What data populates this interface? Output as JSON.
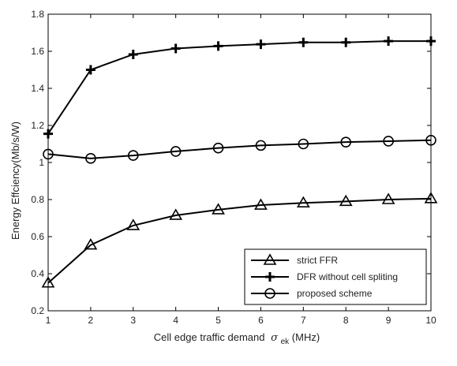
{
  "chart_data": {
    "type": "line",
    "xlabel": "Cell edge traffic demand",
    "xlabel_symbol": "σ",
    "xlabel_subscript": "ek",
    "xlabel_unit": "(MHz)",
    "ylabel": "Energy Effciency(Mb/s/W)",
    "xlim": [
      1,
      10
    ],
    "ylim": [
      0.2,
      1.8
    ],
    "x_ticks": [
      1,
      2,
      3,
      4,
      5,
      6,
      7,
      8,
      9,
      10
    ],
    "y_ticks": [
      0.2,
      0.4,
      0.6,
      0.8,
      1,
      1.2,
      1.4,
      1.6,
      1.8
    ],
    "y_tick_labels": [
      "0.2",
      "0.4",
      "0.6",
      "0.8",
      "1",
      "1.2",
      "1.4",
      "1.6",
      "1.8"
    ],
    "grid": false,
    "legend_position": "bottom-right",
    "x": [
      1,
      2,
      3,
      4,
      5,
      6,
      7,
      8,
      9,
      10
    ],
    "series": [
      {
        "name": "strict FFR",
        "marker": "triangle",
        "color": "#000000",
        "values": [
          0.35,
          0.555,
          0.66,
          0.715,
          0.745,
          0.77,
          0.782,
          0.79,
          0.8,
          0.805
        ]
      },
      {
        "name": "DFR without cell spliting",
        "marker": "plus",
        "color": "#000000",
        "values": [
          1.155,
          1.5,
          1.583,
          1.615,
          1.628,
          1.638,
          1.648,
          1.648,
          1.655,
          1.655
        ]
      },
      {
        "name": "proposed scheme",
        "marker": "circle",
        "color": "#000000",
        "values": [
          1.045,
          1.022,
          1.038,
          1.06,
          1.078,
          1.092,
          1.1,
          1.11,
          1.115,
          1.12
        ]
      }
    ]
  }
}
